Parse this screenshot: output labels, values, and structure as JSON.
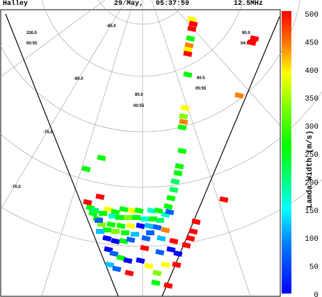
{
  "header": {
    "station": "Halley",
    "datetime": "29/May,   05:37:59",
    "frequency": "12.5MHz"
  },
  "grid_labels": {
    "lat_minus_85": "-85.0",
    "lat_minus_80": "-80.0",
    "lat_minus_75": "-75.0",
    "lat_minus_70": "-70.0",
    "lat_90_a": "90.0",
    "lat_80_a": "80.0",
    "lon_330": "330.0",
    "lon_60": "60.5",
    "mlt_00_55": "00:55",
    "mlt_00_55b": "00:55",
    "mlt_05_55": "05:55",
    "mlt_04_55": "04:55",
    "lat_90_b": "90.0"
  },
  "colorbar": {
    "title": "Lamda Width (m/s)",
    "ticks": [
      "500",
      "450",
      "400",
      "350",
      "300",
      "250",
      "200",
      "150",
      "100",
      "50",
      "0"
    ],
    "min": 0,
    "max": 500
  },
  "chart_data": {
    "type": "heatmap",
    "title": "",
    "parameter": "Lamda Width (m/s)",
    "range": [
      0,
      500
    ]
  }
}
